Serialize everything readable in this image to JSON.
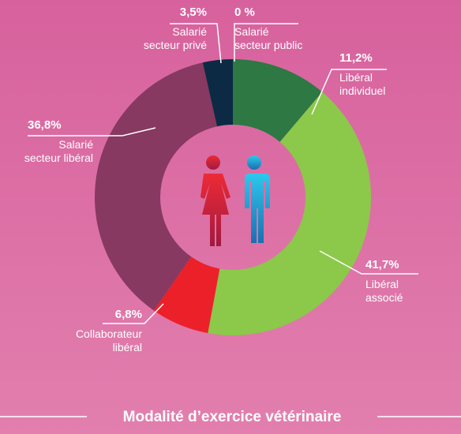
{
  "chart_data": {
    "type": "donut",
    "title": "Modalité d’exercice vétérinaire",
    "categories": [
      [
        "Libéral",
        "individuel"
      ],
      [
        "Libéral",
        "associé"
      ],
      [
        "Collaborateur",
        "libéral"
      ],
      [
        "Salarié",
        "secteur libéral"
      ],
      [
        "Salarié",
        "secteur privé"
      ],
      [
        "Salarié",
        "secteur public"
      ]
    ],
    "values": [
      11.2,
      41.7,
      6.8,
      36.8,
      3.5,
      0
    ],
    "value_labels": [
      "11,2%",
      "41,7%",
      "6,8%",
      "36,8%",
      "3,5%",
      "0 %"
    ],
    "colors": [
      "#2d7843",
      "#8cc84a",
      "#ec2029",
      "#873961",
      "#0c2a44",
      "#a04a78"
    ]
  }
}
